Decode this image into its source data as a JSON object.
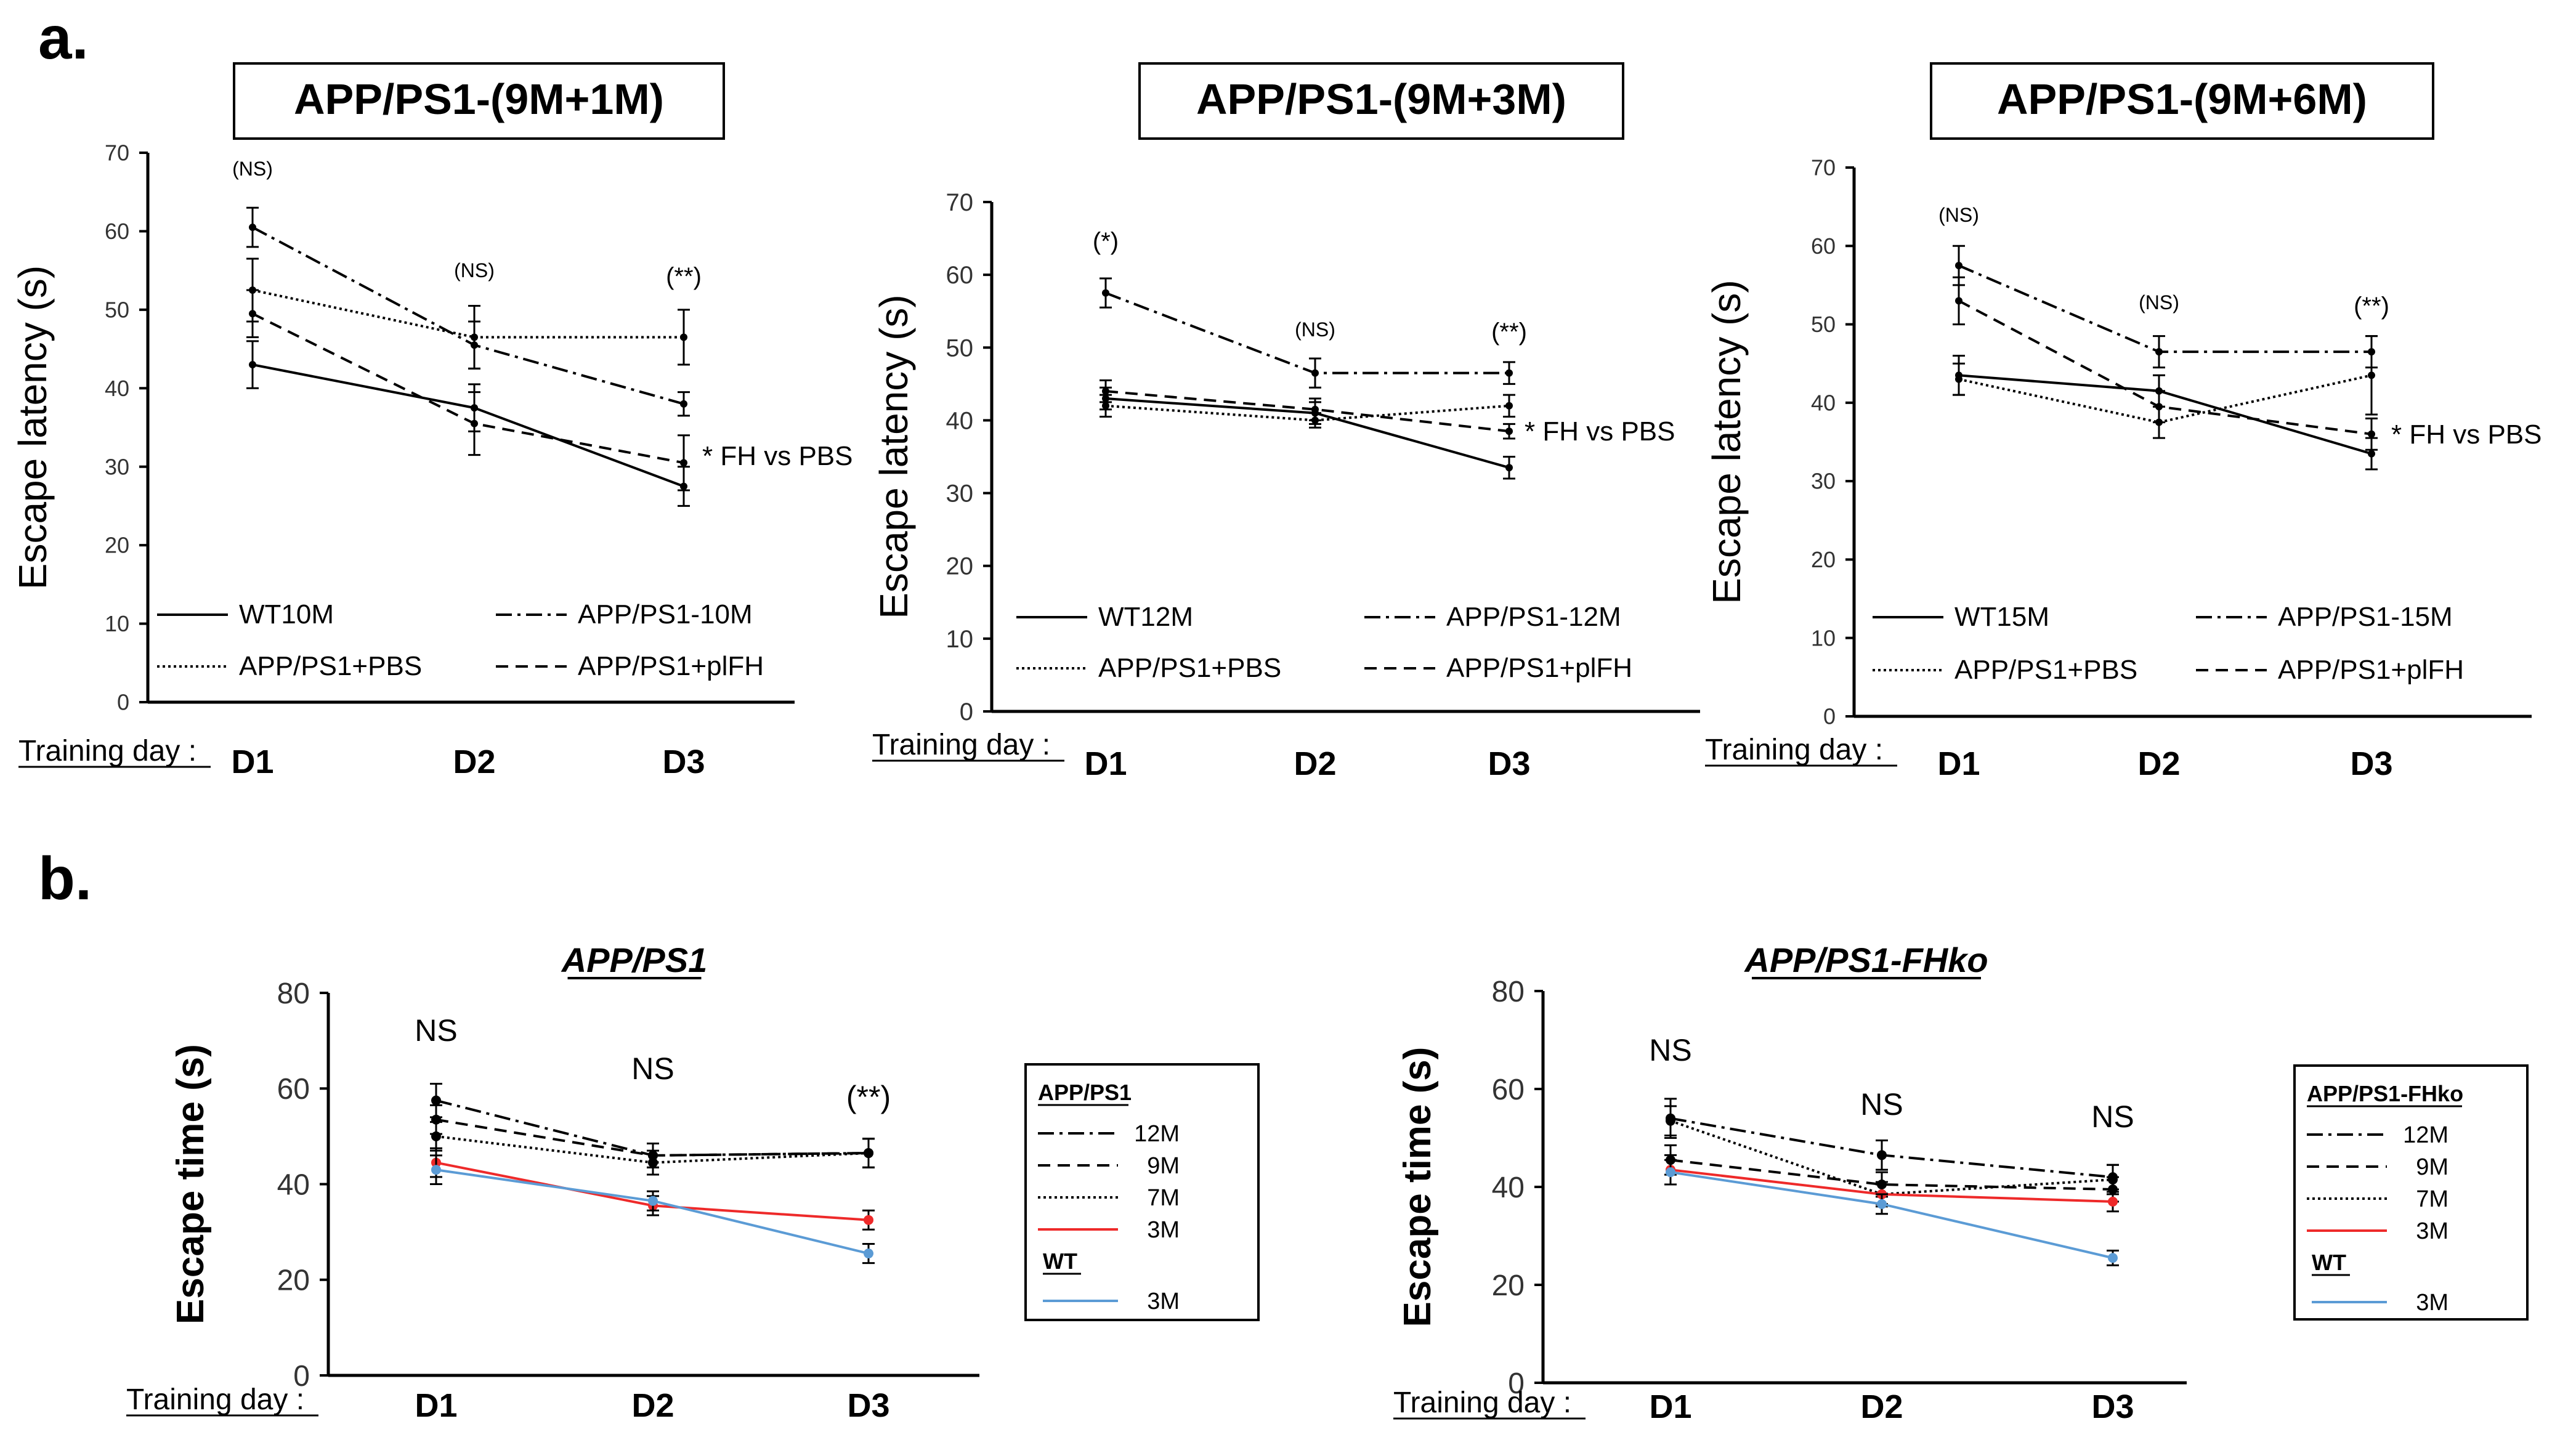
{
  "figure": {
    "panel_a_label": "a.",
    "panel_b_label": "b.",
    "training_day_label": "Training day :",
    "colors": {
      "axis": "#000000",
      "red": "#ee2a2a",
      "blue": "#5b9bd5",
      "orange": "#ed7d31",
      "gray": "#9e9e9e"
    }
  },
  "chart_data": [
    {
      "id": "a1",
      "type": "line",
      "title": "APP/PS1-(9M+1M)",
      "ylabel": "Escape latency (s)",
      "xlabel": "Training day :",
      "categories": [
        "D1",
        "D2",
        "D3"
      ],
      "ylim": [
        0,
        70
      ],
      "yticks": [
        0,
        10,
        20,
        30,
        40,
        50,
        60,
        70
      ],
      "series": [
        {
          "name": "WT10M",
          "style": "solid",
          "values": [
            43,
            37.5,
            27.5
          ],
          "err": [
            3,
            3,
            2.5
          ]
        },
        {
          "name": "APP/PS1-10M",
          "style": "dashdot",
          "values": [
            60.5,
            45.5,
            38
          ],
          "err": [
            2.5,
            3,
            1.5
          ]
        },
        {
          "name": "APP/PS1+PBS",
          "style": "dotted",
          "values": [
            52.5,
            46.5,
            46.5
          ],
          "err": [
            4,
            4,
            3.5
          ]
        },
        {
          "name": "APP/PS1+plFH",
          "style": "dashed",
          "values": [
            49.5,
            35.5,
            30.5
          ],
          "err": [
            3,
            4,
            3.5
          ]
        }
      ],
      "annotations": [
        {
          "cat": "D1",
          "text": "(NS)"
        },
        {
          "cat": "D2",
          "text": "(NS)"
        },
        {
          "cat": "D3",
          "text": "(**)"
        }
      ],
      "side_note": "* FH vs PBS"
    },
    {
      "id": "a2",
      "type": "line",
      "title": "APP/PS1-(9M+3M)",
      "ylabel": "Escape latency (s)",
      "xlabel": "Training day :",
      "categories": [
        "D1",
        "D2",
        "D3"
      ],
      "ylim": [
        0,
        70
      ],
      "yticks": [
        0,
        10,
        20,
        30,
        40,
        50,
        60,
        70
      ],
      "series": [
        {
          "name": "WT12M",
          "style": "solid",
          "values": [
            43,
            41,
            33.5
          ],
          "err": [
            1.5,
            1.5,
            1.5
          ]
        },
        {
          "name": "APP/PS1-12M",
          "style": "dashdot",
          "values": [
            57.5,
            46.5,
            46.5
          ],
          "err": [
            2,
            2,
            1.5
          ]
        },
        {
          "name": "APP/PS1+PBS",
          "style": "dotted",
          "values": [
            42,
            40,
            42
          ],
          "err": [
            1.5,
            1,
            1.5
          ]
        },
        {
          "name": "APP/PS1+plFH",
          "style": "dashed",
          "values": [
            44,
            41.5,
            38.5
          ],
          "err": [
            1.5,
            1.5,
            1
          ]
        }
      ],
      "annotations": [
        {
          "cat": "D1",
          "text": "(*)"
        },
        {
          "cat": "D2",
          "text": "(NS)"
        },
        {
          "cat": "D3",
          "text": "(**)"
        }
      ],
      "side_note": "* FH vs PBS"
    },
    {
      "id": "a3",
      "type": "line",
      "title": "APP/PS1-(9M+6M)",
      "ylabel": "Escape latency (s)",
      "xlabel": "Training day :",
      "categories": [
        "D1",
        "D2",
        "D3"
      ],
      "ylim": [
        0,
        70
      ],
      "yticks": [
        0,
        10,
        20,
        30,
        40,
        50,
        60,
        70
      ],
      "series": [
        {
          "name": "WT15M",
          "style": "solid",
          "values": [
            43.5,
            41.5,
            33.5
          ],
          "err": [
            2.5,
            2,
            2
          ]
        },
        {
          "name": "APP/PS1-15M",
          "style": "dashdot",
          "values": [
            57.5,
            46.5,
            46.5
          ],
          "err": [
            2.5,
            2,
            2
          ]
        },
        {
          "name": "APP/PS1+PBS",
          "style": "dotted",
          "values": [
            43,
            37.5,
            43.5
          ],
          "err": [
            2,
            2,
            5
          ]
        },
        {
          "name": "APP/PS1+plFH",
          "style": "dashed",
          "values": [
            53,
            39.5,
            36
          ],
          "err": [
            3,
            2,
            2
          ]
        }
      ],
      "annotations": [
        {
          "cat": "D1",
          "text": "(NS)"
        },
        {
          "cat": "D2",
          "text": "(NS)"
        },
        {
          "cat": "D3",
          "text": "(**)"
        }
      ],
      "side_note": "* FH vs PBS"
    },
    {
      "id": "b1",
      "type": "line",
      "title": "APP/PS1",
      "ylabel": "Escape time (s)",
      "xlabel": "Training day :",
      "categories": [
        "D1",
        "D2",
        "D3"
      ],
      "ylim": [
        0,
        80
      ],
      "yticks": [
        0,
        20,
        40,
        60,
        80
      ],
      "legend_title": "APP/PS1",
      "legend_wt_title": "WT",
      "series": [
        {
          "name": "12M",
          "style": "dashdot",
          "values": [
            57.5,
            46,
            46.5
          ],
          "err": [
            3.5,
            2.5,
            3
          ]
        },
        {
          "name": "9M",
          "style": "dashed",
          "values": [
            53.5,
            46,
            46.5
          ],
          "err": [
            3,
            2.5,
            3
          ]
        },
        {
          "name": "7M",
          "style": "dotted",
          "values": [
            50,
            44.5,
            46.5
          ],
          "err": [
            3,
            2.5,
            3
          ]
        },
        {
          "name": "3M",
          "style": "solid-red",
          "values": [
            44.5,
            35.5,
            32.5
          ],
          "err": [
            3,
            2,
            2
          ]
        },
        {
          "name": "3M",
          "style": "solid-blue",
          "wt": true,
          "values": [
            43,
            36.5,
            25.5
          ],
          "err": [
            3,
            2,
            2
          ]
        }
      ],
      "annotations": [
        {
          "cat": "D1",
          "text": "NS"
        },
        {
          "cat": "D2",
          "text": "NS"
        },
        {
          "cat": "D3",
          "text": "(**)"
        }
      ]
    },
    {
      "id": "b2",
      "type": "line",
      "title": "APP/PS1-FHko",
      "ylabel": "Escape time (s)",
      "xlabel": "Training day :",
      "categories": [
        "D1",
        "D2",
        "D3"
      ],
      "ylim": [
        0,
        80
      ],
      "yticks": [
        0,
        20,
        40,
        60,
        80
      ],
      "legend_title": "APP/PS1-FHko",
      "legend_wt_title": "WT",
      "series": [
        {
          "name": "12M",
          "style": "dashdot",
          "values": [
            54,
            46.5,
            42
          ],
          "err": [
            4,
            3,
            2.5
          ]
        },
        {
          "name": "9M",
          "style": "dashed",
          "values": [
            45.5,
            40.5,
            39.5
          ],
          "err": [
            3,
            2.5,
            2.5
          ]
        },
        {
          "name": "7M",
          "style": "dotted",
          "values": [
            53.5,
            38.5,
            41.5
          ],
          "err": [
            3,
            2.5,
            3
          ]
        },
        {
          "name": "3M",
          "style": "solid-red",
          "values": [
            43.5,
            38.5,
            37
          ],
          "err": [
            3,
            2,
            2
          ]
        },
        {
          "name": "3M",
          "style": "solid-blue",
          "wt": true,
          "values": [
            43,
            36.5,
            25.5
          ],
          "err": [
            2.5,
            2,
            1.5
          ]
        }
      ],
      "annotations": [
        {
          "cat": "D1",
          "text": "NS"
        },
        {
          "cat": "D2",
          "text": "NS"
        },
        {
          "cat": "D3",
          "text": "NS"
        }
      ]
    }
  ]
}
